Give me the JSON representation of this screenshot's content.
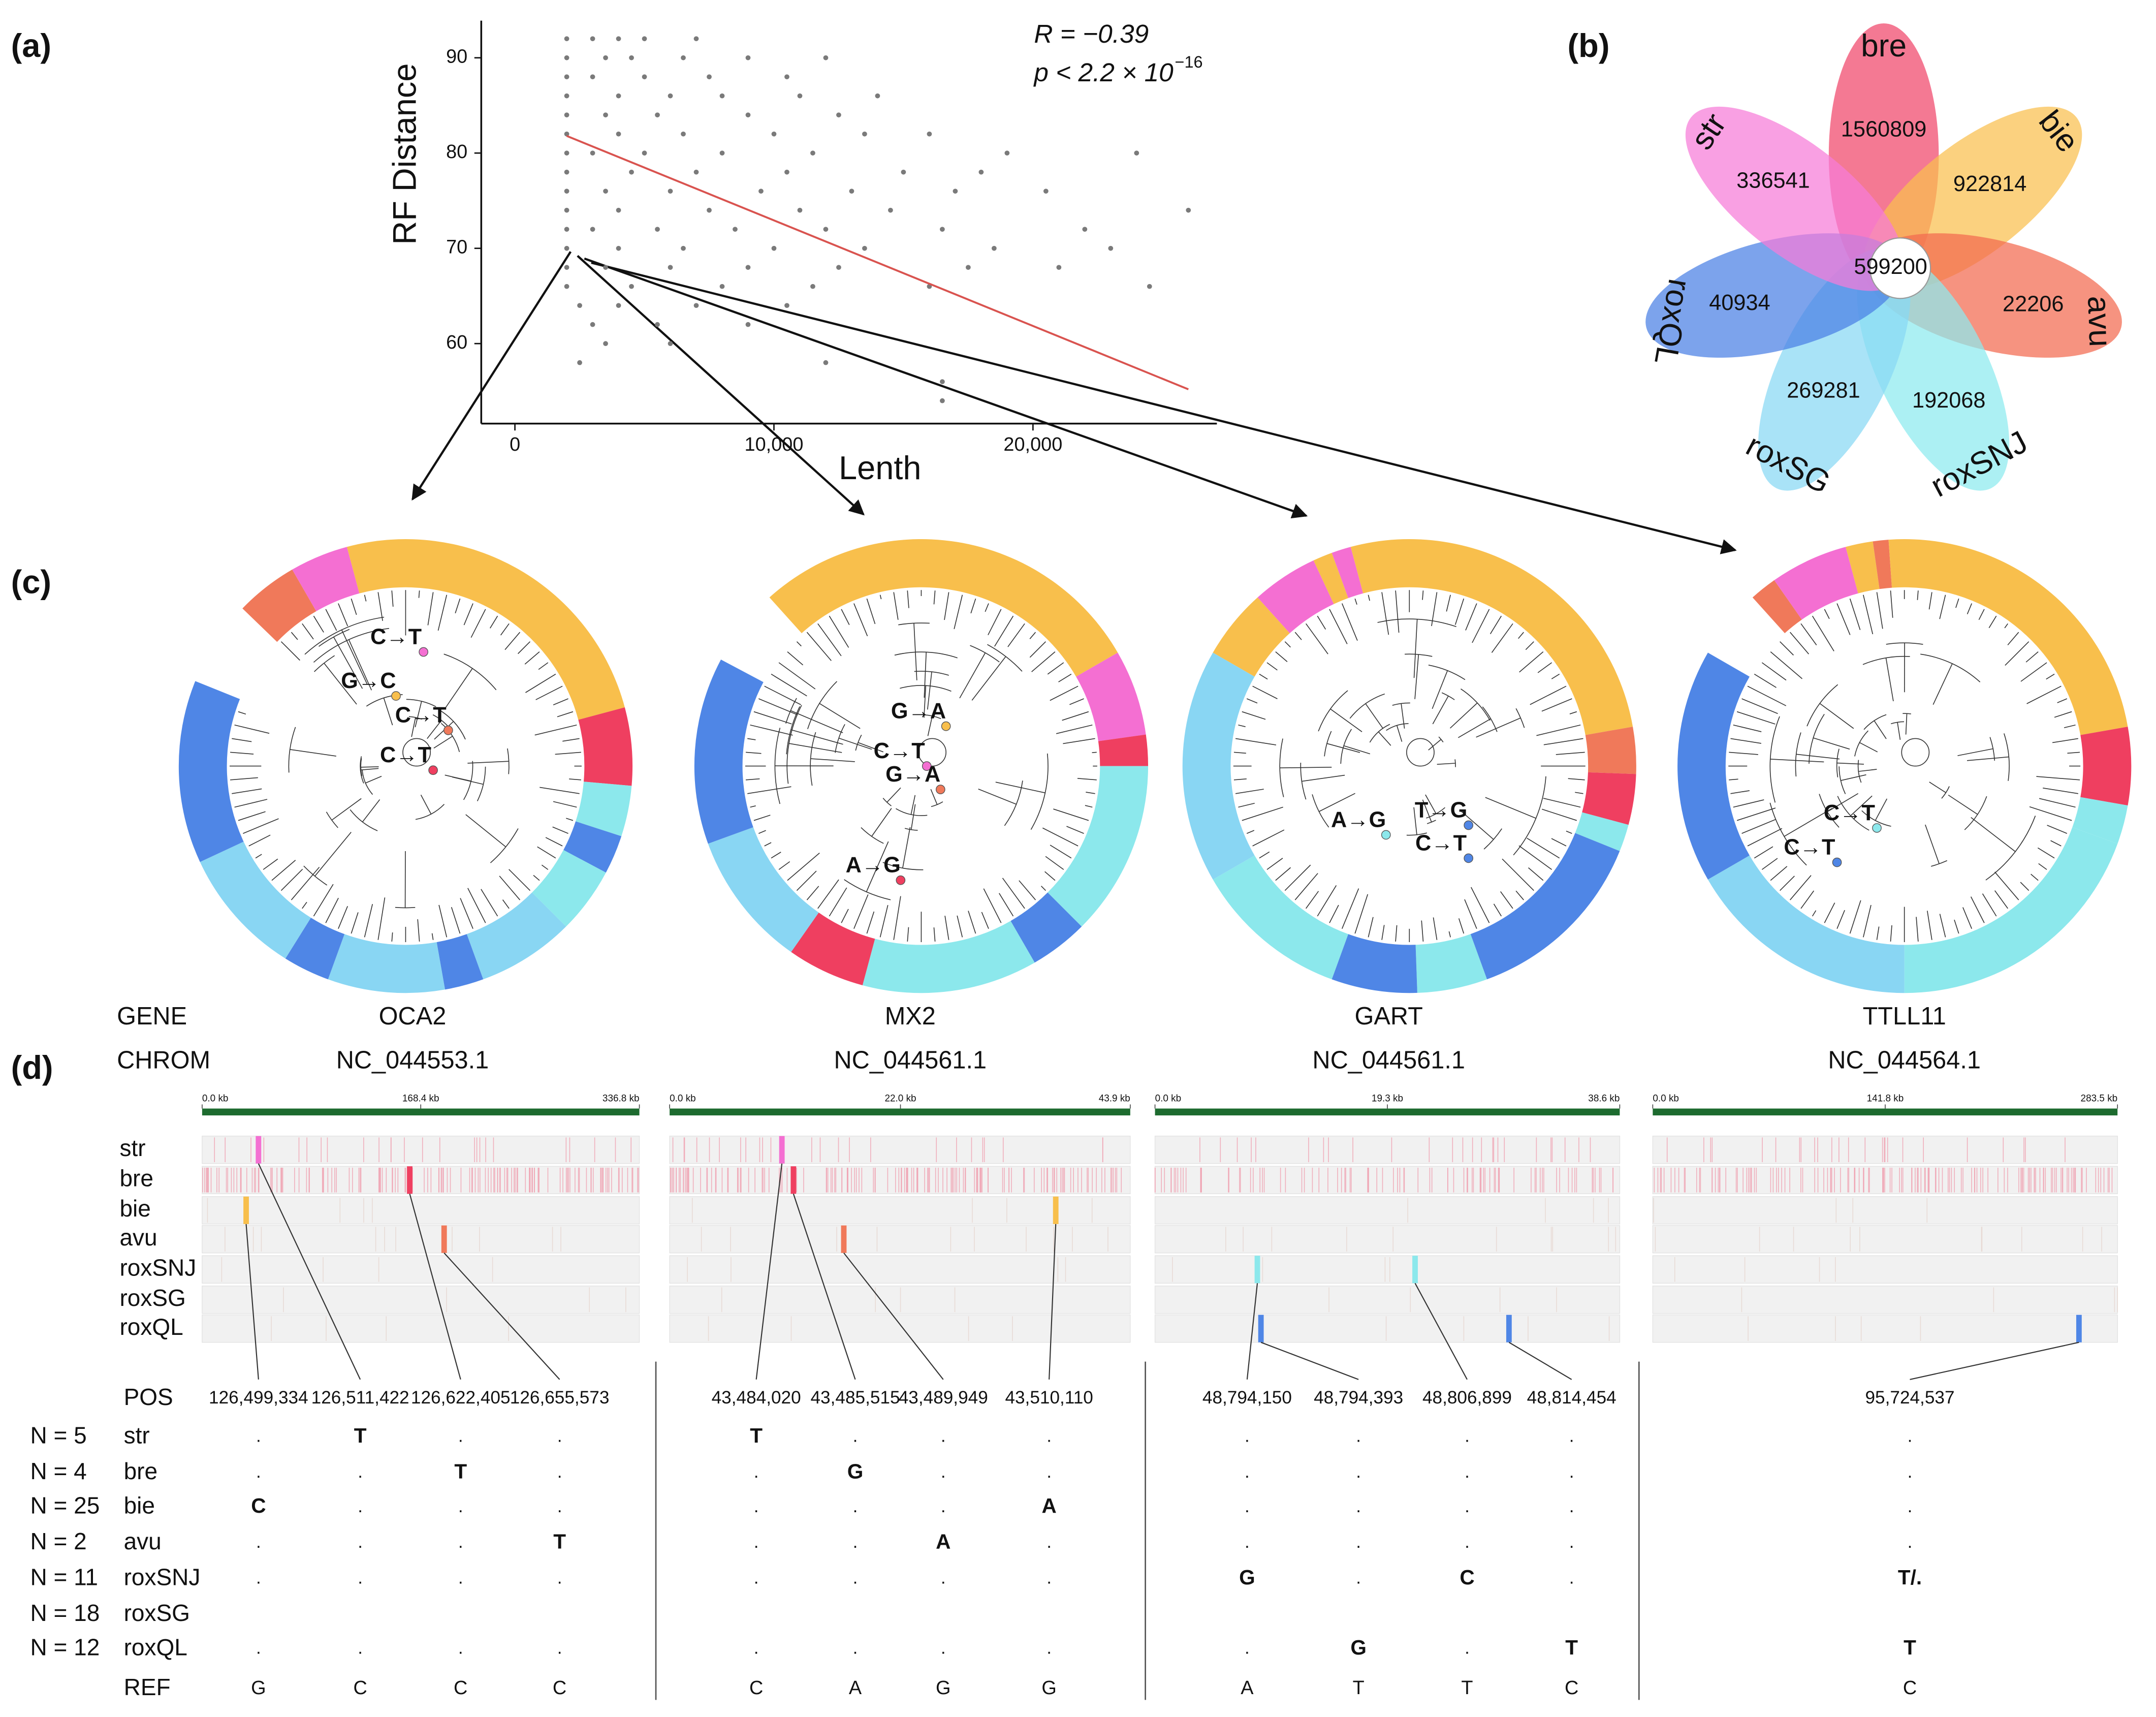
{
  "panel_labels": [
    "(a)",
    "(b)",
    "(c)",
    "(d)"
  ],
  "chart_data": [
    {
      "type": "scatter",
      "x_label": "Lenth",
      "y_label": "RF Distance",
      "annotations": {
        "r": "R = −0.39",
        "p": "p < 2.2 × 10",
        "p_exponent": "−16"
      },
      "color": "#7a7a7a",
      "x": [
        2000,
        3000,
        4000,
        5000,
        7000,
        2000,
        3500,
        4500,
        6500,
        9000,
        12000,
        2000,
        3000,
        5000,
        7500,
        10500,
        2000,
        4000,
        6000,
        8000,
        11000,
        14000,
        2000,
        3500,
        5500,
        9000,
        12500,
        2000,
        4000,
        6500,
        10000,
        13500,
        16000,
        2000,
        3000,
        5000,
        8000,
        11500,
        19000,
        24000,
        2000,
        4500,
        7000,
        10500,
        15000,
        18000,
        2000,
        3500,
        6000,
        9500,
        13000,
        17000,
        20500,
        2000,
        4000,
        7500,
        11000,
        14500,
        26000,
        2000,
        3000,
        5500,
        8500,
        12000,
        16500,
        22000,
        2000,
        4000,
        6500,
        10000,
        13500,
        18500,
        23000,
        2000,
        3500,
        6000,
        9000,
        12500,
        17500,
        21000,
        2000,
        4500,
        8000,
        11500,
        16000,
        24500,
        2500,
        4000,
        7000,
        10500,
        3000,
        5500,
        9000,
        3500,
        6000,
        2500,
        12000,
        16500,
        16500
      ],
      "y": [
        92,
        92,
        92,
        92,
        92,
        90,
        90,
        90,
        90,
        90,
        90,
        88,
        88,
        88,
        88,
        88,
        86,
        86,
        86,
        86,
        86,
        86,
        84,
        84,
        84,
        84,
        84,
        82,
        82,
        82,
        82,
        82,
        82,
        80,
        80,
        80,
        80,
        80,
        80,
        80,
        78,
        78,
        78,
        78,
        78,
        78,
        76,
        76,
        76,
        76,
        76,
        76,
        76,
        74,
        74,
        74,
        74,
        74,
        74,
        72,
        72,
        72,
        72,
        72,
        72,
        72,
        70,
        70,
        70,
        70,
        70,
        70,
        70,
        68,
        68,
        68,
        68,
        68,
        68,
        68,
        66,
        66,
        66,
        66,
        66,
        66,
        64,
        64,
        64,
        64,
        62,
        62,
        62,
        60,
        60,
        58,
        58,
        56,
        54
      ],
      "fit": {
        "x": [
          2000,
          26000
        ],
        "y": [
          81.8,
          55.2
        ],
        "color": "#d9534f"
      },
      "xlim": [
        -1300,
        27100
      ],
      "ylim": [
        51.6,
        93.9
      ],
      "xticks": [
        0,
        {
          "value": 10000,
          "label": "10,000"
        },
        {
          "value": 20000,
          "label": "20,000"
        }
      ],
      "yticks": [
        60,
        70,
        80,
        90
      ]
    },
    {
      "type": "flower",
      "categories": [
        "bre",
        "bie",
        "avu",
        "roxSNJ",
        "roxSG",
        "roxQL",
        "str"
      ],
      "values": [
        1560809,
        922814,
        22206,
        192068,
        269281,
        40934,
        336541
      ],
      "colors": [
        "#f0456a",
        "#f9bf4d",
        "#f26a4f",
        "#8ceaee",
        "#88d8f4",
        "#4a80e4",
        "#f77bd8"
      ],
      "center_value": 599200
    }
  ],
  "groups": [
    {
      "name": "str",
      "color": "#f46fd2",
      "n_label": "N = 5"
    },
    {
      "name": "bre",
      "color": "#ef3f60",
      "n_label": "N = 4"
    },
    {
      "name": "bie",
      "color": "#f8bf4c",
      "n_label": "N = 25"
    },
    {
      "name": "avu",
      "color": "#f0795a",
      "n_label": "N = 2"
    },
    {
      "name": "roxSNJ",
      "color": "#8ce8ec",
      "n_label": "N = 11"
    },
    {
      "name": "roxSG",
      "color": "#89d6f3",
      "n_label": "N = 18"
    },
    {
      "name": "roxQL",
      "color": "#4f86e6",
      "n_label": "N = 12"
    }
  ],
  "tracks": {
    "gene_header": "GENE",
    "chrom_header": "CHROM",
    "pos_label": "POS",
    "ref_label": "REF",
    "genes": [
      {
        "gene": "OCA2",
        "chrom": "NC_044553.1",
        "mutations": [
          {
            "label": "C→T",
            "group": "str"
          },
          {
            "label": "G→C",
            "group": "bie"
          },
          {
            "label": "C→T",
            "group": "avu"
          },
          {
            "label": "C→T",
            "group": "bre"
          }
        ],
        "xlim": [
          0,
          336.8
        ],
        "xticks": [
          {
            "value": 0,
            "label": "0.0 kb"
          },
          {
            "value": 168.4,
            "label": "168.4 kb"
          },
          {
            "value": 336.8,
            "label": "336.8 kb"
          }
        ],
        "variants": [
          {
            "group": "bie",
            "kb": 33.9,
            "column": 0
          },
          {
            "group": "str",
            "kb": 43.4,
            "column": 1
          },
          {
            "group": "bre",
            "kb": 159.9,
            "column": 2
          },
          {
            "group": "avu",
            "kb": 186.4,
            "column": 3
          }
        ],
        "positions": [
          "126,499,334",
          "126,511,422",
          "126,622,405",
          "126,655,573"
        ],
        "genotypes": [
          [
            ".",
            "T",
            ".",
            "."
          ],
          [
            ".",
            ".",
            "T",
            "."
          ],
          [
            "C",
            ".",
            ".",
            "."
          ],
          [
            ".",
            ".",
            ".",
            "T"
          ],
          [
            ".",
            ".",
            ".",
            "."
          ],
          null,
          [
            ".",
            ".",
            ".",
            "."
          ]
        ],
        "ref": [
          "G",
          "C",
          "C",
          "C"
        ]
      },
      {
        "gene": "MX2",
        "chrom": "NC_044561.1",
        "mutations": [
          {
            "label": "G→A",
            "group": "bie"
          },
          {
            "label": "C→T",
            "group": "str"
          },
          {
            "label": "G→A",
            "group": "avu"
          },
          {
            "label": "A→G",
            "group": "bre"
          }
        ],
        "xlim": [
          0,
          43.9
        ],
        "xticks": [
          {
            "value": 0,
            "label": "0.0 kb"
          },
          {
            "value": 22.0,
            "label": "22.0 kb"
          },
          {
            "value": 43.9,
            "label": "43.9 kb"
          }
        ],
        "variants": [
          {
            "group": "str",
            "kb": 10.7,
            "column": 0
          },
          {
            "group": "bre",
            "kb": 11.8,
            "column": 1
          },
          {
            "group": "avu",
            "kb": 16.6,
            "column": 2
          },
          {
            "group": "bie",
            "kb": 36.8,
            "column": 3
          }
        ],
        "positions": [
          "43,484,020",
          "43,485,515",
          "43,489,949",
          "43,510,110"
        ],
        "genotypes": [
          [
            "T",
            ".",
            ".",
            "."
          ],
          [
            ".",
            "G",
            ".",
            "."
          ],
          [
            ".",
            ".",
            ".",
            "A"
          ],
          [
            ".",
            ".",
            "A",
            "."
          ],
          [
            ".",
            ".",
            ".",
            "."
          ],
          null,
          [
            ".",
            ".",
            ".",
            "."
          ]
        ],
        "ref": [
          "C",
          "A",
          "G",
          "G"
        ]
      },
      {
        "gene": "GART",
        "chrom": "NC_044561.1",
        "mutations": [
          {
            "label": "A→G",
            "group": "roxSNJ"
          },
          {
            "label": "T→G",
            "group": "roxQL"
          },
          {
            "label": "C→T",
            "group": "roxQL"
          }
        ],
        "xlim": [
          0,
          38.6
        ],
        "xticks": [
          {
            "value": 0,
            "label": "0.0 kb"
          },
          {
            "value": 19.3,
            "label": "19.3 kb"
          },
          {
            "value": 38.6,
            "label": "38.6 kb"
          }
        ],
        "variants": [
          {
            "group": "roxSNJ",
            "kb": 8.5,
            "column": 0
          },
          {
            "group": "roxQL",
            "kb": 8.8,
            "column": 1
          },
          {
            "group": "roxSNJ",
            "kb": 21.6,
            "column": 2
          },
          {
            "group": "roxQL",
            "kb": 29.4,
            "column": 3
          }
        ],
        "positions": [
          "48,794,150",
          "48,794,393",
          "48,806,899",
          "48,814,454"
        ],
        "genotypes": [
          [
            ".",
            ".",
            ".",
            "."
          ],
          [
            ".",
            ".",
            ".",
            "."
          ],
          [
            ".",
            ".",
            ".",
            "."
          ],
          [
            ".",
            ".",
            ".",
            "."
          ],
          [
            "G",
            ".",
            "C",
            "."
          ],
          null,
          [
            ".",
            "G",
            ".",
            "T"
          ]
        ],
        "ref": [
          "A",
          "T",
          "T",
          "C"
        ]
      },
      {
        "gene": "TTLL11",
        "chrom": "NC_044564.1",
        "mutations": [
          {
            "label": "C→T",
            "group": "roxSNJ"
          },
          {
            "label": "C→T",
            "group": "roxQL"
          }
        ],
        "xlim": [
          0,
          283.5
        ],
        "xticks": [
          {
            "value": 0,
            "label": "0.0 kb"
          },
          {
            "value": 141.8,
            "label": "141.8 kb"
          },
          {
            "value": 283.5,
            "label": "283.5 kb"
          }
        ],
        "variants": [
          {
            "group": "roxQL",
            "kb": 260.0,
            "column": 0
          }
        ],
        "positions": [
          "95,724,537"
        ],
        "genotypes": [
          [
            "."
          ],
          [
            "."
          ],
          [
            "."
          ],
          [
            "."
          ],
          [
            "T/."
          ],
          null,
          [
            "T"
          ]
        ],
        "ref": [
          "C"
        ]
      }
    ]
  }
}
